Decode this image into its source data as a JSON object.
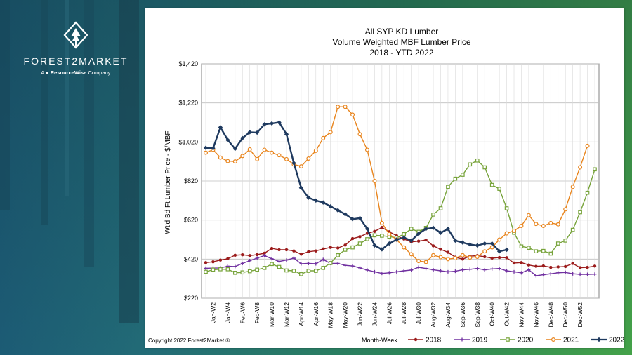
{
  "brand": {
    "name": "FOREST2MARKET",
    "prefix": "A",
    "company_bold": "ResourceWise",
    "company_suffix": "Company"
  },
  "copyright": "Copyright 2022 Forest2Market ®",
  "colors": {
    "s2018": "#9b1b1b",
    "s2019": "#7030a0",
    "s2020": "#77a33a",
    "s2021": "#e8841c",
    "s2022": "#1f3a5f"
  },
  "chart_data": {
    "type": "line",
    "title": [
      "All SYP KD Lumber",
      "Volume Weighted MBF Lumber Price",
      "2018 - YTD 2022"
    ],
    "ylabel": "Wt'd Bd Ft Lumber Price - $/MBF",
    "xlabel": "Month-Week",
    "ylim": [
      220,
      1420
    ],
    "yticks": [
      "$220",
      "$420",
      "$620",
      "$820",
      "$1,020",
      "$1,220",
      "$1,420"
    ],
    "ytick_values": [
      220,
      420,
      620,
      820,
      1020,
      1220,
      1420
    ],
    "xticks": [
      "Jan-W2",
      "Jan-W4",
      "Feb-W6",
      "Feb-W8",
      "Mar-W10",
      "Mar-W12",
      "Apr-W14",
      "Apr-W16",
      "May-W18",
      "May-W20",
      "Jun-W22",
      "Jun-W24",
      "Jul-W26",
      "Jul-W28",
      "Jul-W30",
      "Aug-W32",
      "Aug-W34",
      "Sep-W36",
      "Sep-W38",
      "Oct-W40",
      "Oct-W42",
      "Nov-W44",
      "Nov-W46",
      "Dec-W48",
      "Dec-W50",
      "Dec-W52"
    ],
    "xtick_weeks": [
      2,
      4,
      6,
      8,
      10,
      12,
      14,
      16,
      18,
      20,
      22,
      24,
      26,
      28,
      30,
      32,
      34,
      36,
      38,
      40,
      42,
      44,
      46,
      48,
      50,
      52
    ],
    "grid": true,
    "legend": "bottom",
    "series": [
      {
        "name": "2018",
        "color": "#9b1b1b",
        "values": [
          402,
          406,
          415,
          422,
          440,
          442,
          438,
          443,
          450,
          475,
          468,
          468,
          462,
          445,
          458,
          462,
          472,
          480,
          477,
          492,
          525,
          535,
          552,
          562,
          582,
          560,
          540,
          523,
          508,
          512,
          518,
          488,
          470,
          455,
          430,
          420,
          435,
          438,
          432,
          425,
          428,
          427,
          400,
          402,
          390,
          383,
          385,
          378,
          380,
          382,
          398,
          376,
          378,
          384
        ]
      },
      {
        "name": "2019",
        "color": "#7030a0",
        "values": [
          373,
          374,
          375,
          384,
          382,
          398,
          412,
          425,
          438,
          422,
          408,
          415,
          425,
          396,
          398,
          396,
          418,
          398,
          398,
          388,
          385,
          375,
          364,
          355,
          347,
          350,
          355,
          360,
          364,
          378,
          372,
          365,
          360,
          355,
          358,
          365,
          368,
          372,
          365,
          370,
          372,
          360,
          355,
          350,
          365,
          335,
          340,
          345,
          350,
          352,
          345,
          342,
          342,
          343
        ]
      },
      {
        "name": "2020",
        "color": "#77a33a",
        "values": [
          355,
          366,
          368,
          368,
          350,
          352,
          358,
          366,
          375,
          395,
          380,
          362,
          360,
          343,
          360,
          360,
          375,
          400,
          440,
          468,
          480,
          500,
          522,
          542,
          540,
          535,
          530,
          548,
          575,
          560,
          580,
          648,
          680,
          790,
          832,
          852,
          905,
          925,
          890,
          800,
          780,
          680,
          555,
          485,
          478,
          460,
          462,
          448,
          500,
          515,
          570,
          660,
          760,
          880
        ]
      },
      {
        "name": "2021",
        "color": "#e8841c",
        "values": [
          965,
          980,
          940,
          922,
          920,
          948,
          982,
          932,
          980,
          965,
          952,
          932,
          905,
          895,
          935,
          975,
          1040,
          1070,
          1200,
          1200,
          1160,
          1060,
          980,
          820,
          605,
          548,
          520,
          480,
          445,
          410,
          405,
          440,
          430,
          420,
          425,
          440,
          428,
          432,
          460,
          480,
          520,
          552,
          565,
          590,
          645,
          600,
          590,
          605,
          598,
          675,
          790,
          890,
          1000,
          null
        ]
      },
      {
        "name": "2022",
        "color": "#1f3a5f",
        "values": [
          990,
          988,
          1095,
          1030,
          985,
          1040,
          1070,
          1068,
          1110,
          1115,
          1120,
          1060,
          912,
          785,
          735,
          720,
          710,
          690,
          670,
          650,
          625,
          630,
          575,
          490,
          470,
          500,
          520,
          530,
          515,
          550,
          575,
          580,
          555,
          575,
          515,
          505,
          495,
          490,
          500,
          500,
          460,
          468,
          null,
          null,
          null,
          null,
          null,
          null,
          null,
          null,
          null,
          null,
          null,
          null
        ]
      }
    ]
  }
}
